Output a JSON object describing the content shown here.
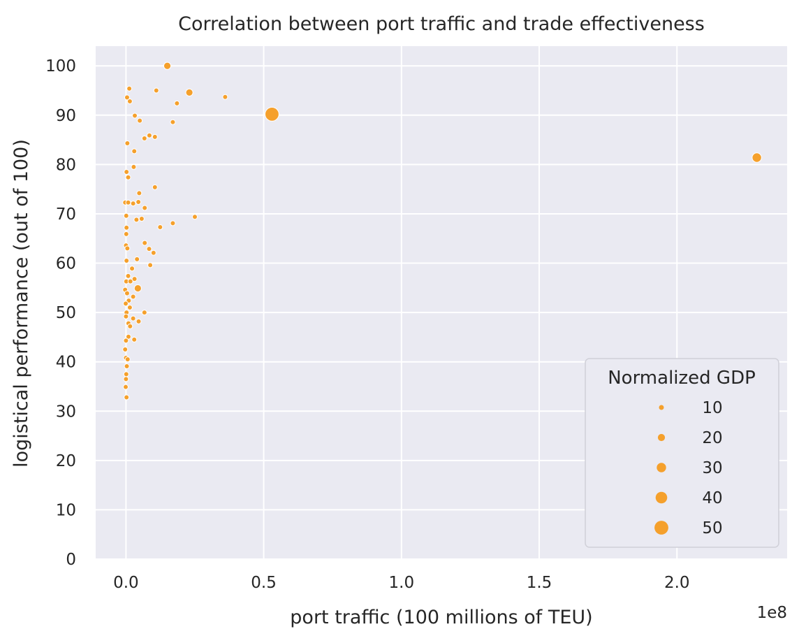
{
  "colors": {
    "plot_background": "#eaeaf2",
    "grid": "#ffffff",
    "marker": "#f5a02c",
    "marker_edge": "#ffffff",
    "text": "#262626"
  },
  "chart_data": {
    "type": "scatter",
    "title": "Correlation between port traffic and trade effectiveness",
    "xlabel": "port traffic (100 millions of TEU)",
    "ylabel": "logistical performance (out of 100)",
    "x_offset_label": "1e8",
    "x_tick_labels": [
      "0.0",
      "0.5",
      "1.0",
      "1.5",
      "2.0"
    ],
    "y_tick_labels": [
      "0",
      "10",
      "20",
      "30",
      "40",
      "50",
      "60",
      "70",
      "80",
      "90",
      "100"
    ],
    "xlim": [
      -11000000,
      240000000
    ],
    "ylim": [
      0,
      104
    ],
    "x_ticks": [
      0,
      50000000,
      100000000,
      150000000,
      200000000
    ],
    "y_ticks": [
      0,
      10,
      20,
      30,
      40,
      50,
      60,
      70,
      80,
      90,
      100
    ],
    "grid": true,
    "legend": {
      "title": "Normalized GDP",
      "placement": "lower-right",
      "entries": [
        {
          "label": "10",
          "value": 10
        },
        {
          "label": "20",
          "value": 20
        },
        {
          "label": "30",
          "value": 30
        },
        {
          "label": "40",
          "value": 40
        },
        {
          "label": "50",
          "value": 50
        }
      ]
    },
    "points": [
      {
        "x": 15000000,
        "y": 100.0,
        "gdp": 20
      },
      {
        "x": 1200000,
        "y": 95.4,
        "gdp": 10
      },
      {
        "x": 11000000,
        "y": 95.0,
        "gdp": 10
      },
      {
        "x": 23000000,
        "y": 94.6,
        "gdp": 20
      },
      {
        "x": 36000000,
        "y": 93.7,
        "gdp": 10
      },
      {
        "x": 400000,
        "y": 93.6,
        "gdp": 10
      },
      {
        "x": 1400000,
        "y": 92.8,
        "gdp": 10
      },
      {
        "x": 18500000,
        "y": 92.4,
        "gdp": 10
      },
      {
        "x": 53000000,
        "y": 90.2,
        "gdp": 50
      },
      {
        "x": 3200000,
        "y": 89.9,
        "gdp": 10
      },
      {
        "x": 5000000,
        "y": 88.9,
        "gdp": 10
      },
      {
        "x": 17000000,
        "y": 88.6,
        "gdp": 10
      },
      {
        "x": 8500000,
        "y": 85.9,
        "gdp": 10
      },
      {
        "x": 10500000,
        "y": 85.6,
        "gdp": 10
      },
      {
        "x": 6700000,
        "y": 85.3,
        "gdp": 10
      },
      {
        "x": 500000,
        "y": 84.3,
        "gdp": 10
      },
      {
        "x": 3000000,
        "y": 82.7,
        "gdp": 10
      },
      {
        "x": 229000000,
        "y": 81.4,
        "gdp": 30
      },
      {
        "x": 2800000,
        "y": 79.5,
        "gdp": 10
      },
      {
        "x": 200000,
        "y": 78.5,
        "gdp": 10
      },
      {
        "x": 800000,
        "y": 77.4,
        "gdp": 10
      },
      {
        "x": 10500000,
        "y": 75.4,
        "gdp": 10
      },
      {
        "x": 4800000,
        "y": 74.2,
        "gdp": 10
      },
      {
        "x": -300000,
        "y": 72.3,
        "gdp": 10
      },
      {
        "x": 800000,
        "y": 72.3,
        "gdp": 10
      },
      {
        "x": 2600000,
        "y": 72.1,
        "gdp": 10
      },
      {
        "x": 4500000,
        "y": 72.4,
        "gdp": 10
      },
      {
        "x": 6800000,
        "y": 71.2,
        "gdp": 10
      },
      {
        "x": 100000,
        "y": 69.6,
        "gdp": 10
      },
      {
        "x": 25000000,
        "y": 69.4,
        "gdp": 10
      },
      {
        "x": 3800000,
        "y": 68.8,
        "gdp": 10
      },
      {
        "x": 5700000,
        "y": 69.0,
        "gdp": 10
      },
      {
        "x": 17000000,
        "y": 68.1,
        "gdp": 10
      },
      {
        "x": 12400000,
        "y": 67.3,
        "gdp": 10
      },
      {
        "x": 200000,
        "y": 67.2,
        "gdp": 10
      },
      {
        "x": 100000,
        "y": 65.9,
        "gdp": 10
      },
      {
        "x": 6800000,
        "y": 64.1,
        "gdp": 10
      },
      {
        "x": 0,
        "y": 63.6,
        "gdp": 10
      },
      {
        "x": 500000,
        "y": 63.0,
        "gdp": 10
      },
      {
        "x": 8400000,
        "y": 62.9,
        "gdp": 10
      },
      {
        "x": 10000000,
        "y": 62.1,
        "gdp": 10
      },
      {
        "x": 4000000,
        "y": 60.8,
        "gdp": 10
      },
      {
        "x": 200000,
        "y": 60.5,
        "gdp": 10
      },
      {
        "x": 8800000,
        "y": 59.6,
        "gdp": 10
      },
      {
        "x": 2200000,
        "y": 58.9,
        "gdp": 10
      },
      {
        "x": 800000,
        "y": 57.4,
        "gdp": 10
      },
      {
        "x": 3100000,
        "y": 56.8,
        "gdp": 10
      },
      {
        "x": 100000,
        "y": 56.3,
        "gdp": 10
      },
      {
        "x": 1600000,
        "y": 56.3,
        "gdp": 10
      },
      {
        "x": 4300000,
        "y": 54.9,
        "gdp": 20
      },
      {
        "x": -300000,
        "y": 54.6,
        "gdp": 10
      },
      {
        "x": 400000,
        "y": 53.9,
        "gdp": 10
      },
      {
        "x": 1000000,
        "y": 52.4,
        "gdp": 10
      },
      {
        "x": 2600000,
        "y": 53.2,
        "gdp": 10
      },
      {
        "x": -100000,
        "y": 51.8,
        "gdp": 10
      },
      {
        "x": 1400000,
        "y": 51.0,
        "gdp": 10
      },
      {
        "x": 200000,
        "y": 50.0,
        "gdp": 10
      },
      {
        "x": 6700000,
        "y": 50.0,
        "gdp": 10
      },
      {
        "x": 0,
        "y": 49.2,
        "gdp": 10
      },
      {
        "x": 2600000,
        "y": 48.8,
        "gdp": 10
      },
      {
        "x": 4600000,
        "y": 48.2,
        "gdp": 10
      },
      {
        "x": 900000,
        "y": 47.8,
        "gdp": 10
      },
      {
        "x": 1500000,
        "y": 47.2,
        "gdp": 10
      },
      {
        "x": 900000,
        "y": 45.1,
        "gdp": 10
      },
      {
        "x": 3000000,
        "y": 44.5,
        "gdp": 10
      },
      {
        "x": 0,
        "y": 44.3,
        "gdp": 10
      },
      {
        "x": -300000,
        "y": 42.5,
        "gdp": 10
      },
      {
        "x": 0,
        "y": 40.8,
        "gdp": 10
      },
      {
        "x": 600000,
        "y": 40.5,
        "gdp": 10
      },
      {
        "x": 300000,
        "y": 39.1,
        "gdp": 10
      },
      {
        "x": 100000,
        "y": 37.5,
        "gdp": 10
      },
      {
        "x": 0,
        "y": 36.5,
        "gdp": 10
      },
      {
        "x": -100000,
        "y": 34.9,
        "gdp": 10
      },
      {
        "x": 200000,
        "y": 32.8,
        "gdp": 10
      }
    ]
  }
}
